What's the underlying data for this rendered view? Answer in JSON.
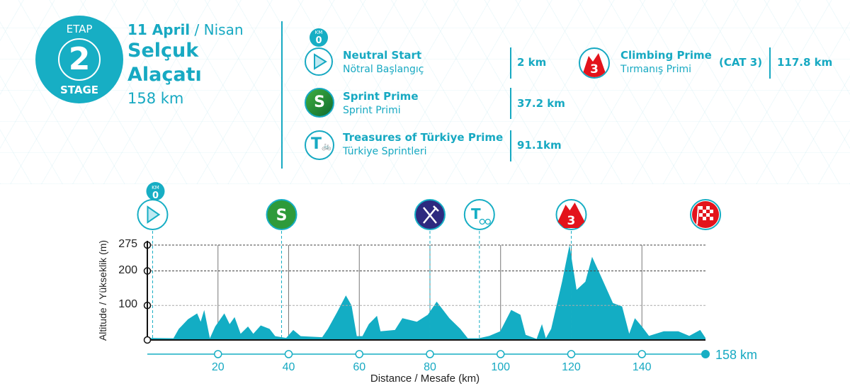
{
  "header": {
    "badge_top": "ETAP",
    "badge_number": "2",
    "badge_bottom": "STAGE",
    "date_bold": "11 April",
    "date_rest": " / Nisan",
    "start_city": "Selçuk",
    "finish_city": "Alaçatı",
    "distance": "158 km"
  },
  "legend": [
    {
      "icon": "neutral-start-icon",
      "title": "Neutral Start",
      "subtitle": "Nötral Başlangıç",
      "km": "2 km",
      "km0": "KM",
      "km0_value": "0"
    },
    {
      "icon": "sprint-icon",
      "title": "Sprint Prime",
      "subtitle": "Sprint Primi",
      "km": "37.2 km",
      "glyph": "S"
    },
    {
      "icon": "treasures-icon",
      "title": "Treasures of Türkiye Prime",
      "subtitle": "Türkiye Sprintleri",
      "km": "91.1km",
      "glyph": "T"
    },
    {
      "icon": "climb-icon",
      "title": "Climbing Prime",
      "subtitle": "Tırmanış Primi",
      "category": "(CAT 3)",
      "km": "117.8 km",
      "glyph": "3"
    }
  ],
  "colors": {
    "accent": "#17aec4",
    "sprint": "#2e9a3a",
    "feed": "#2d2a7f",
    "climb": "#e3131b",
    "profile": "#13adc4"
  },
  "chart_data": {
    "type": "area",
    "title": "",
    "xlabel": "Distance / Mesafe  (km)",
    "ylabel": "Altitude / Yükseklik (m)",
    "xlim": [
      0,
      158
    ],
    "ylim": [
      0,
      275
    ],
    "x_ticks": [
      20,
      40,
      60,
      80,
      100,
      120,
      140
    ],
    "y_ticks": [
      100,
      200,
      275
    ],
    "end_label": "158 km",
    "grid": true,
    "profile": [
      [
        0,
        6
      ],
      [
        7.4,
        5
      ],
      [
        8.9,
        32
      ],
      [
        11.5,
        60
      ],
      [
        14.1,
        77
      ],
      [
        15.1,
        53
      ],
      [
        16.1,
        87
      ],
      [
        17.7,
        5
      ],
      [
        19.2,
        39
      ],
      [
        21.8,
        77
      ],
      [
        23.3,
        46
      ],
      [
        24.7,
        66
      ],
      [
        26.4,
        18
      ],
      [
        28.5,
        39
      ],
      [
        30,
        18
      ],
      [
        32.1,
        42
      ],
      [
        34.6,
        32
      ],
      [
        36.2,
        11
      ],
      [
        39.3,
        6
      ],
      [
        41.3,
        29
      ],
      [
        43.4,
        11
      ],
      [
        49.5,
        8
      ],
      [
        51.1,
        32
      ],
      [
        53.7,
        80
      ],
      [
        56.2,
        129
      ],
      [
        57.8,
        100
      ],
      [
        59.3,
        11
      ],
      [
        60.9,
        11
      ],
      [
        62.7,
        46
      ],
      [
        65,
        70
      ],
      [
        66,
        25
      ],
      [
        70.1,
        29
      ],
      [
        72.2,
        63
      ],
      [
        76.3,
        53
      ],
      [
        79.4,
        73
      ],
      [
        81.9,
        111
      ],
      [
        85.5,
        63
      ],
      [
        88.6,
        32
      ],
      [
        90.7,
        5
      ],
      [
        93.8,
        5
      ],
      [
        96.8,
        12
      ],
      [
        99.9,
        25
      ],
      [
        103,
        87
      ],
      [
        105.6,
        73
      ],
      [
        107.1,
        15
      ],
      [
        110.2,
        3
      ],
      [
        111.7,
        46
      ],
      [
        112.8,
        5
      ],
      [
        114.3,
        32
      ],
      [
        117.4,
        169
      ],
      [
        119.5,
        275
      ],
      [
        121.5,
        145
      ],
      [
        124,
        169
      ],
      [
        125.9,
        241
      ],
      [
        128.2,
        189
      ],
      [
        131.8,
        107
      ],
      [
        134.4,
        97
      ],
      [
        136.4,
        18
      ],
      [
        138,
        63
      ],
      [
        140,
        39
      ],
      [
        142,
        12
      ],
      [
        146.2,
        25
      ],
      [
        150.3,
        25
      ],
      [
        153.4,
        12
      ],
      [
        156.5,
        29
      ],
      [
        158,
        6
      ]
    ],
    "markers": [
      {
        "type": "neutral-start",
        "km": 1.5,
        "label_top": "KM",
        "label_value": "0"
      },
      {
        "type": "sprint",
        "km": 38,
        "label": "S"
      },
      {
        "type": "feed-zone",
        "km": 80
      },
      {
        "type": "treasures",
        "km": 94,
        "label": "T"
      },
      {
        "type": "climb",
        "km": 120,
        "label": "3"
      },
      {
        "type": "finish",
        "km": 158
      }
    ]
  }
}
